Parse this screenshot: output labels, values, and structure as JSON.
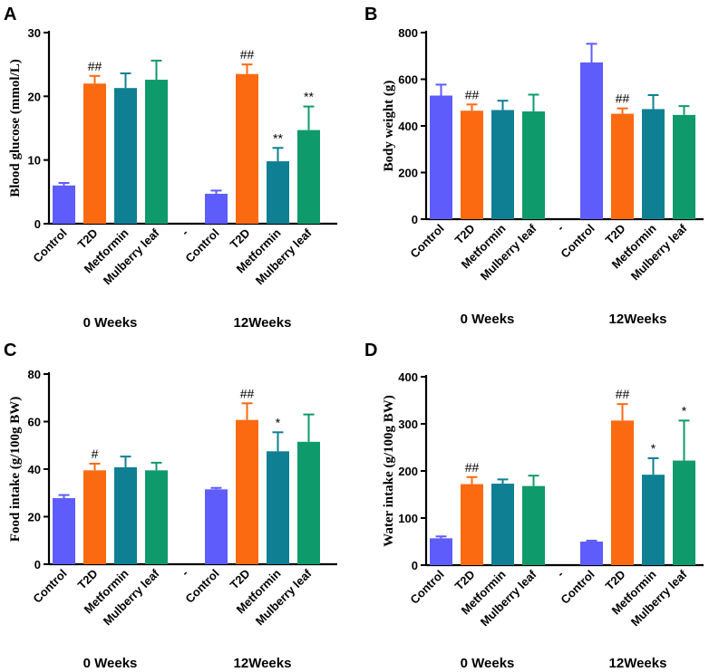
{
  "chart_data": [
    {
      "panel": "A",
      "type": "bar",
      "ylabel": "Blood glucose (mmol/L)",
      "ylim": [
        0,
        30
      ],
      "yticks": [
        0,
        10,
        20,
        30
      ],
      "categories": [
        "Control",
        "T2D",
        "Metformin",
        "Mulberry leaf",
        "-",
        "Control",
        "T2D",
        "Metformin",
        "Mulberry leaf"
      ],
      "groups": [
        "0 Weeks",
        "12Weeks"
      ],
      "values": [
        6.0,
        22.0,
        21.3,
        22.6,
        null,
        4.7,
        23.5,
        9.8,
        14.7
      ],
      "errors": [
        0.4,
        1.2,
        2.3,
        3.0,
        null,
        0.5,
        1.5,
        2.1,
        3.7
      ],
      "significance": [
        "",
        "##",
        "",
        "",
        "",
        "",
        "##",
        "**",
        "**"
      ]
    },
    {
      "panel": "B",
      "type": "bar",
      "ylabel": "Body weight (g)",
      "ylim": [
        0,
        800
      ],
      "yticks": [
        0,
        200,
        400,
        600,
        800
      ],
      "categories": [
        "Control",
        "T2D",
        "Metformin",
        "Mulberry leaf",
        "-",
        "Control",
        "T2D",
        "Metformin",
        "Mulberry leaf"
      ],
      "groups": [
        "0 Weeks",
        "12Weeks"
      ],
      "values": [
        530,
        465,
        468,
        462,
        null,
        672,
        452,
        472,
        447
      ],
      "errors": [
        47,
        27,
        40,
        72,
        null,
        80,
        23,
        60,
        38
      ],
      "significance": [
        "",
        "##",
        "",
        "",
        "",
        "",
        "##",
        "",
        ""
      ]
    },
    {
      "panel": "C",
      "type": "bar",
      "ylabel": "Food intake (g/100g BW)",
      "ylim": [
        0,
        80
      ],
      "yticks": [
        0,
        20,
        40,
        60,
        80
      ],
      "categories": [
        "Control",
        "T2D",
        "Metformin",
        "Mulberry leaf",
        "-",
        "Control",
        "T2D",
        "Metformin",
        "Mulberry leaf"
      ],
      "groups": [
        "0 Weeks",
        "12Weeks"
      ],
      "values": [
        27.8,
        39.5,
        40.8,
        39.5,
        null,
        31.5,
        60.7,
        47.5,
        51.5
      ],
      "errors": [
        1.3,
        2.8,
        4.5,
        3.2,
        null,
        0.6,
        7.0,
        8.0,
        11.5
      ],
      "significance": [
        "",
        "#",
        "",
        "",
        "",
        "",
        "##",
        "*",
        ""
      ]
    },
    {
      "panel": "D",
      "type": "bar",
      "ylabel": "Water intake (g/100g BW)",
      "ylim": [
        0,
        400
      ],
      "yticks": [
        0,
        100,
        200,
        300,
        400
      ],
      "categories": [
        "Control",
        "T2D",
        "Metformin",
        "Mulberry leaf",
        "-",
        "Control",
        "T2D",
        "Metformin",
        "Mulberry leaf"
      ],
      "groups": [
        "0 Weeks",
        "12Weeks"
      ],
      "values": [
        57,
        172,
        173,
        168,
        null,
        50,
        307,
        192,
        222
      ],
      "errors": [
        4,
        15,
        9,
        22,
        null,
        2,
        35,
        35,
        85
      ],
      "significance": [
        "",
        "##",
        "",
        "",
        "",
        "",
        "##",
        "*",
        "*"
      ]
    }
  ],
  "colors": {
    "Control": "#5e5cfb",
    "T2D": "#fb6a11",
    "Metformin": "#0f7f94",
    "Mulberry leaf": "#0f9a6c",
    "axis": "#000000"
  }
}
